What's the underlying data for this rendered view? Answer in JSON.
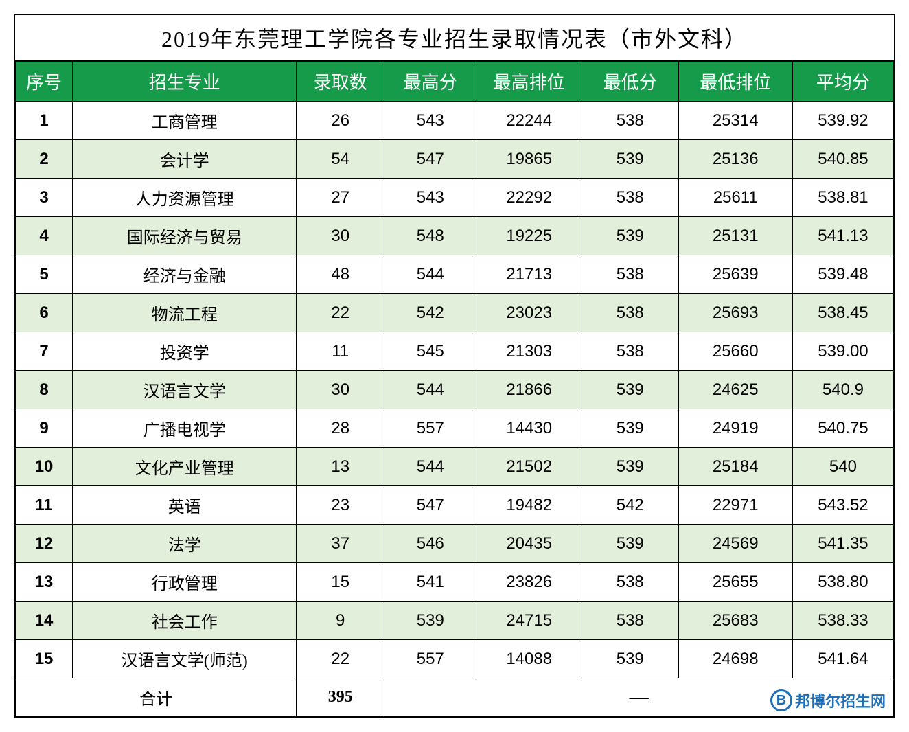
{
  "title": "2019年东莞理工学院各专业招生录取情况表（市外文科）",
  "columns": {
    "seq": "序号",
    "major": "招生专业",
    "count": "录取数",
    "max": "最高分",
    "maxrank": "最高排位",
    "min": "最低分",
    "minrank": "最低排位",
    "avg": "平均分"
  },
  "styling": {
    "header_bg": "#169b4b",
    "header_fg": "#ffffff",
    "row_odd_bg": "#ffffff",
    "row_even_bg": "#e2efda",
    "border_color": "#000000",
    "title_fontsize": 32,
    "header_fontsize": 26,
    "cell_fontsize": 24,
    "col_widths_pct": [
      6.5,
      25.5,
      10,
      10.5,
      12,
      11,
      13,
      11.5
    ]
  },
  "rows": [
    {
      "seq": "1",
      "major": "工商管理",
      "count": "26",
      "max": "543",
      "maxrank": "22244",
      "min": "538",
      "minrank": "25314",
      "avg": "539.92"
    },
    {
      "seq": "2",
      "major": "会计学",
      "count": "54",
      "max": "547",
      "maxrank": "19865",
      "min": "539",
      "minrank": "25136",
      "avg": "540.85"
    },
    {
      "seq": "3",
      "major": "人力资源管理",
      "count": "27",
      "max": "543",
      "maxrank": "22292",
      "min": "538",
      "minrank": "25611",
      "avg": "538.81"
    },
    {
      "seq": "4",
      "major": "国际经济与贸易",
      "count": "30",
      "max": "548",
      "maxrank": "19225",
      "min": "539",
      "minrank": "25131",
      "avg": "541.13"
    },
    {
      "seq": "5",
      "major": "经济与金融",
      "count": "48",
      "max": "544",
      "maxrank": "21713",
      "min": "538",
      "minrank": "25639",
      "avg": "539.48"
    },
    {
      "seq": "6",
      "major": "物流工程",
      "count": "22",
      "max": "542",
      "maxrank": "23023",
      "min": "538",
      "minrank": "25693",
      "avg": "538.45"
    },
    {
      "seq": "7",
      "major": "投资学",
      "count": "11",
      "max": "545",
      "maxrank": "21303",
      "min": "538",
      "minrank": "25660",
      "avg": "539.00"
    },
    {
      "seq": "8",
      "major": "汉语言文学",
      "count": "30",
      "max": "544",
      "maxrank": "21866",
      "min": "539",
      "minrank": "24625",
      "avg": "540.9"
    },
    {
      "seq": "9",
      "major": "广播电视学",
      "count": "28",
      "max": "557",
      "maxrank": "14430",
      "min": "539",
      "minrank": "24919",
      "avg": "540.75"
    },
    {
      "seq": "10",
      "major": "文化产业管理",
      "count": "13",
      "max": "544",
      "maxrank": "21502",
      "min": "539",
      "minrank": "25184",
      "avg": "540"
    },
    {
      "seq": "11",
      "major": "英语",
      "count": "23",
      "max": "547",
      "maxrank": "19482",
      "min": "542",
      "minrank": "22971",
      "avg": "543.52"
    },
    {
      "seq": "12",
      "major": "法学",
      "count": "37",
      "max": "546",
      "maxrank": "20435",
      "min": "539",
      "minrank": "24569",
      "avg": "541.35"
    },
    {
      "seq": "13",
      "major": "行政管理",
      "count": "15",
      "max": "541",
      "maxrank": "23826",
      "min": "538",
      "minrank": "25655",
      "avg": "538.80"
    },
    {
      "seq": "14",
      "major": "社会工作",
      "count": "9",
      "max": "539",
      "maxrank": "24715",
      "min": "538",
      "minrank": "25683",
      "avg": "538.33"
    },
    {
      "seq": "15",
      "major": "汉语言文学(师范)",
      "count": "22",
      "max": "557",
      "maxrank": "14088",
      "min": "539",
      "minrank": "24698",
      "avg": "541.64"
    }
  ],
  "total": {
    "label": "合计",
    "count": "395",
    "dash": "—"
  },
  "watermark": {
    "icon_text": "B",
    "text": "邦博尔招生网",
    "color": "#1e6fb8"
  }
}
